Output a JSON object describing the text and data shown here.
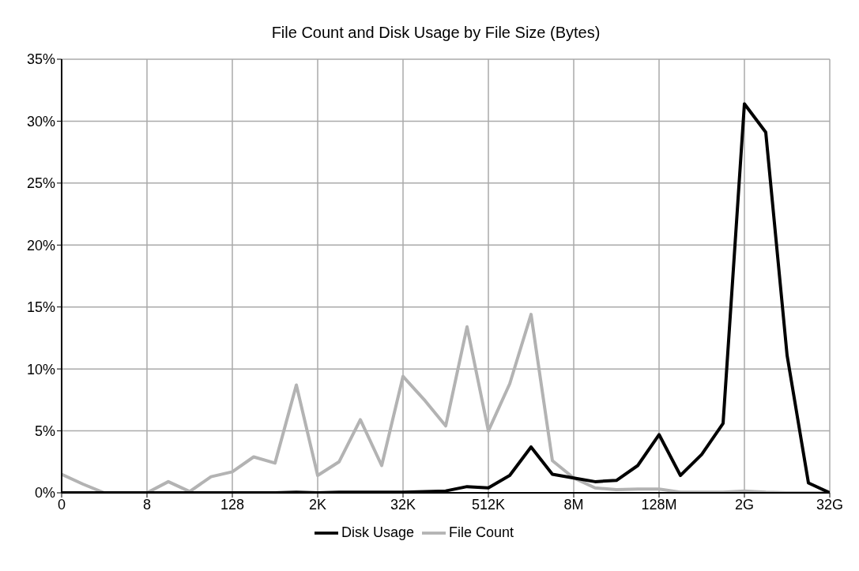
{
  "chart_data": {
    "type": "line",
    "title": "File Count and Disk Usage by File Size (Bytes)",
    "categories": [
      "0",
      null,
      null,
      null,
      "8",
      null,
      null,
      null,
      "128",
      null,
      null,
      null,
      "2K",
      null,
      null,
      null,
      "32K",
      null,
      null,
      null,
      "512K",
      null,
      null,
      null,
      "8M",
      null,
      null,
      null,
      "128M",
      null,
      null,
      null,
      "2G",
      null,
      null,
      null,
      "32G"
    ],
    "series": [
      {
        "name": "File Count",
        "color": "#b3b3b3",
        "values": [
          1.5,
          0.7,
          0,
          0,
          0,
          0.9,
          0.1,
          1.3,
          1.7,
          2.9,
          2.4,
          8.7,
          1.4,
          2.5,
          5.9,
          2.2,
          9.4,
          7.5,
          5.4,
          13.4,
          5.0,
          8.8,
          14.4,
          2.6,
          1.2,
          0.4,
          0.25,
          0.3,
          0.3,
          0.05,
          0.05,
          0.05,
          0.15,
          0.05,
          0,
          0,
          0
        ]
      },
      {
        "name": "Disk Usage",
        "color": "#000000",
        "values": [
          0,
          0,
          0,
          0,
          0,
          0,
          0,
          0,
          0,
          0,
          0,
          0.05,
          0,
          0.05,
          0.05,
          0.05,
          0.05,
          0.1,
          0.15,
          0.5,
          0.4,
          1.4,
          3.7,
          1.5,
          1.2,
          0.9,
          1.0,
          2.2,
          4.7,
          1.4,
          3.1,
          5.6,
          31.4,
          29.1,
          11.1,
          0.8,
          0
        ]
      }
    ],
    "ylim": [
      0,
      35
    ],
    "yticks": [
      {
        "value": 0,
        "label": "0%"
      },
      {
        "value": 5,
        "label": "5%"
      },
      {
        "value": 10,
        "label": "10%"
      },
      {
        "value": 15,
        "label": "15%"
      },
      {
        "value": 20,
        "label": "20%"
      },
      {
        "value": 25,
        "label": "25%"
      },
      {
        "value": 30,
        "label": "30%"
      },
      {
        "value": 35,
        "label": "35%"
      }
    ],
    "grid": true,
    "legend": "bottom",
    "marker": "none",
    "line_style": "solid"
  }
}
